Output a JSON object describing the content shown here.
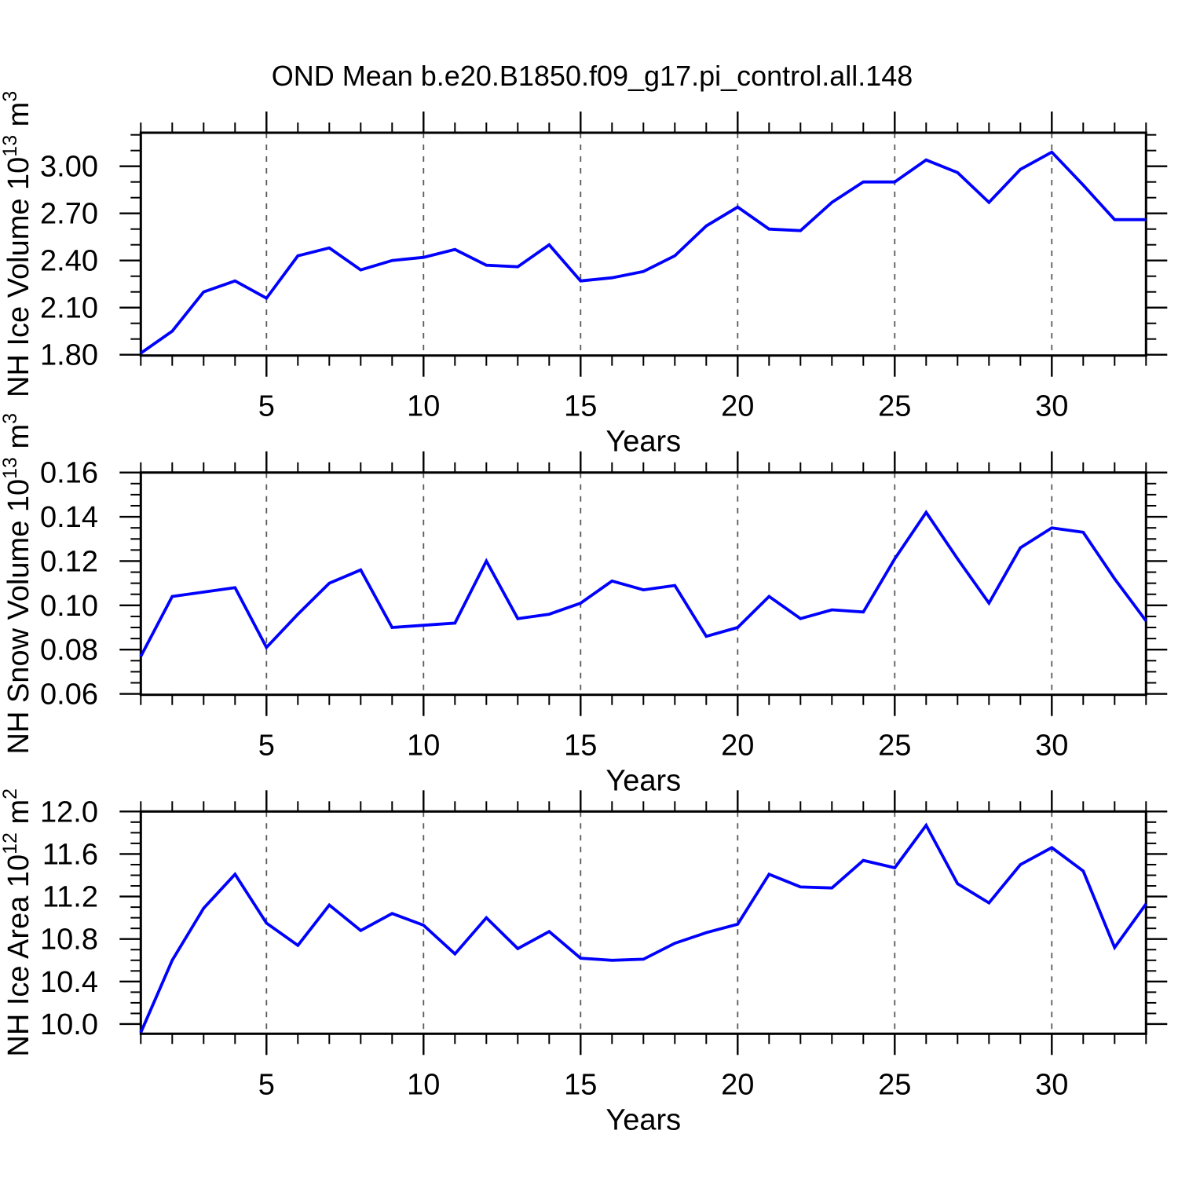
{
  "title": "OND Mean b.e20.B1850.f09_g17.pi_control.all.148",
  "colors": {
    "background": "#ffffff",
    "line": "#0000ff",
    "axis": "#000000",
    "grid": "#5a5a5a",
    "text": "#000000"
  },
  "chart_data": [
    {
      "type": "line",
      "id": "nh-ice-volume",
      "ylabel": {
        "plain": "NH Ice Volume 10^13 m^3",
        "text": "NH Ice Volume 10",
        "sup": "13",
        "mid": " m",
        "unit_sup": "3"
      },
      "xlabel": "Years",
      "x": {
        "start": 1,
        "end": 33,
        "step": 1
      },
      "values": [
        1.81,
        1.95,
        2.2,
        2.27,
        2.16,
        2.43,
        2.48,
        2.34,
        2.4,
        2.42,
        2.47,
        2.37,
        2.36,
        2.5,
        2.27,
        2.29,
        2.33,
        2.43,
        2.62,
        2.74,
        2.6,
        2.59,
        2.77,
        2.9,
        2.9,
        3.04,
        2.96,
        2.77,
        2.98,
        3.09,
        2.88,
        2.66,
        2.66
      ],
      "ylim": [
        1.795,
        3.2135
      ],
      "yticks": [
        1.8,
        2.1,
        2.4,
        2.7,
        3.0
      ],
      "ytick_labels": [
        "1.80",
        "2.10",
        "2.40",
        "2.70",
        "3.00"
      ],
      "y_minor_step": 0.1,
      "xticks": [
        5,
        10,
        15,
        20,
        25,
        30
      ],
      "xtick_labels": [
        "5",
        "10",
        "15",
        "20",
        "25",
        "30"
      ],
      "x_minor_step": 1,
      "grid": "vertical-dashed-at-major-xticks",
      "legend": "none"
    },
    {
      "type": "line",
      "id": "nh-snow-volume",
      "ylabel": {
        "plain": "NH Snow Volume 10^13 m^3",
        "text": "NH Snow Volume 10",
        "sup": "13",
        "mid": " m",
        "unit_sup": "3"
      },
      "xlabel": "Years",
      "x": {
        "start": 1,
        "end": 33,
        "step": 1
      },
      "values": [
        0.077,
        0.104,
        0.106,
        0.108,
        0.081,
        0.096,
        0.11,
        0.116,
        0.09,
        0.091,
        0.092,
        0.12,
        0.094,
        0.096,
        0.101,
        0.111,
        0.107,
        0.109,
        0.086,
        0.09,
        0.104,
        0.094,
        0.098,
        0.097,
        0.121,
        0.142,
        0.121,
        0.101,
        0.126,
        0.135,
        0.133,
        0.112,
        0.093
      ],
      "ylim": [
        0.0596,
        0.16
      ],
      "yticks": [
        0.06,
        0.08,
        0.1,
        0.12,
        0.14,
        0.16
      ],
      "ytick_labels": [
        "0.06",
        "0.08",
        "0.10",
        "0.12",
        "0.14",
        "0.16"
      ],
      "y_minor_step": 0.005,
      "xticks": [
        5,
        10,
        15,
        20,
        25,
        30
      ],
      "xtick_labels": [
        "5",
        "10",
        "15",
        "20",
        "25",
        "30"
      ],
      "x_minor_step": 1,
      "grid": "vertical-dashed-at-major-xticks",
      "legend": "none"
    },
    {
      "type": "line",
      "id": "nh-ice-area",
      "ylabel": {
        "plain": "NH Ice Area 10^12 m^2",
        "text": "NH Ice Area 10",
        "sup": "12",
        "mid": " m",
        "unit_sup": "2"
      },
      "xlabel": "Years",
      "x": {
        "start": 1,
        "end": 33,
        "step": 1
      },
      "values": [
        9.92,
        10.6,
        11.09,
        11.41,
        10.95,
        10.74,
        11.12,
        10.88,
        11.04,
        10.93,
        10.66,
        11.0,
        10.71,
        10.87,
        10.62,
        10.6,
        10.61,
        10.76,
        10.86,
        10.94,
        11.41,
        11.29,
        11.28,
        11.54,
        11.47,
        11.87,
        11.32,
        11.14,
        11.5,
        11.66,
        11.44,
        10.72,
        11.13
      ],
      "ylim": [
        9.909,
        12.0
      ],
      "yticks": [
        10.0,
        10.4,
        10.8,
        11.2,
        11.6,
        12.0
      ],
      "ytick_labels": [
        "10.0",
        "10.4",
        "10.8",
        "11.2",
        "11.6",
        "12.0"
      ],
      "y_minor_step": 0.1,
      "xticks": [
        5,
        10,
        15,
        20,
        25,
        30
      ],
      "xtick_labels": [
        "5",
        "10",
        "15",
        "20",
        "25",
        "30"
      ],
      "x_minor_step": 1,
      "grid": "vertical-dashed-at-major-xticks",
      "legend": "none"
    }
  ]
}
